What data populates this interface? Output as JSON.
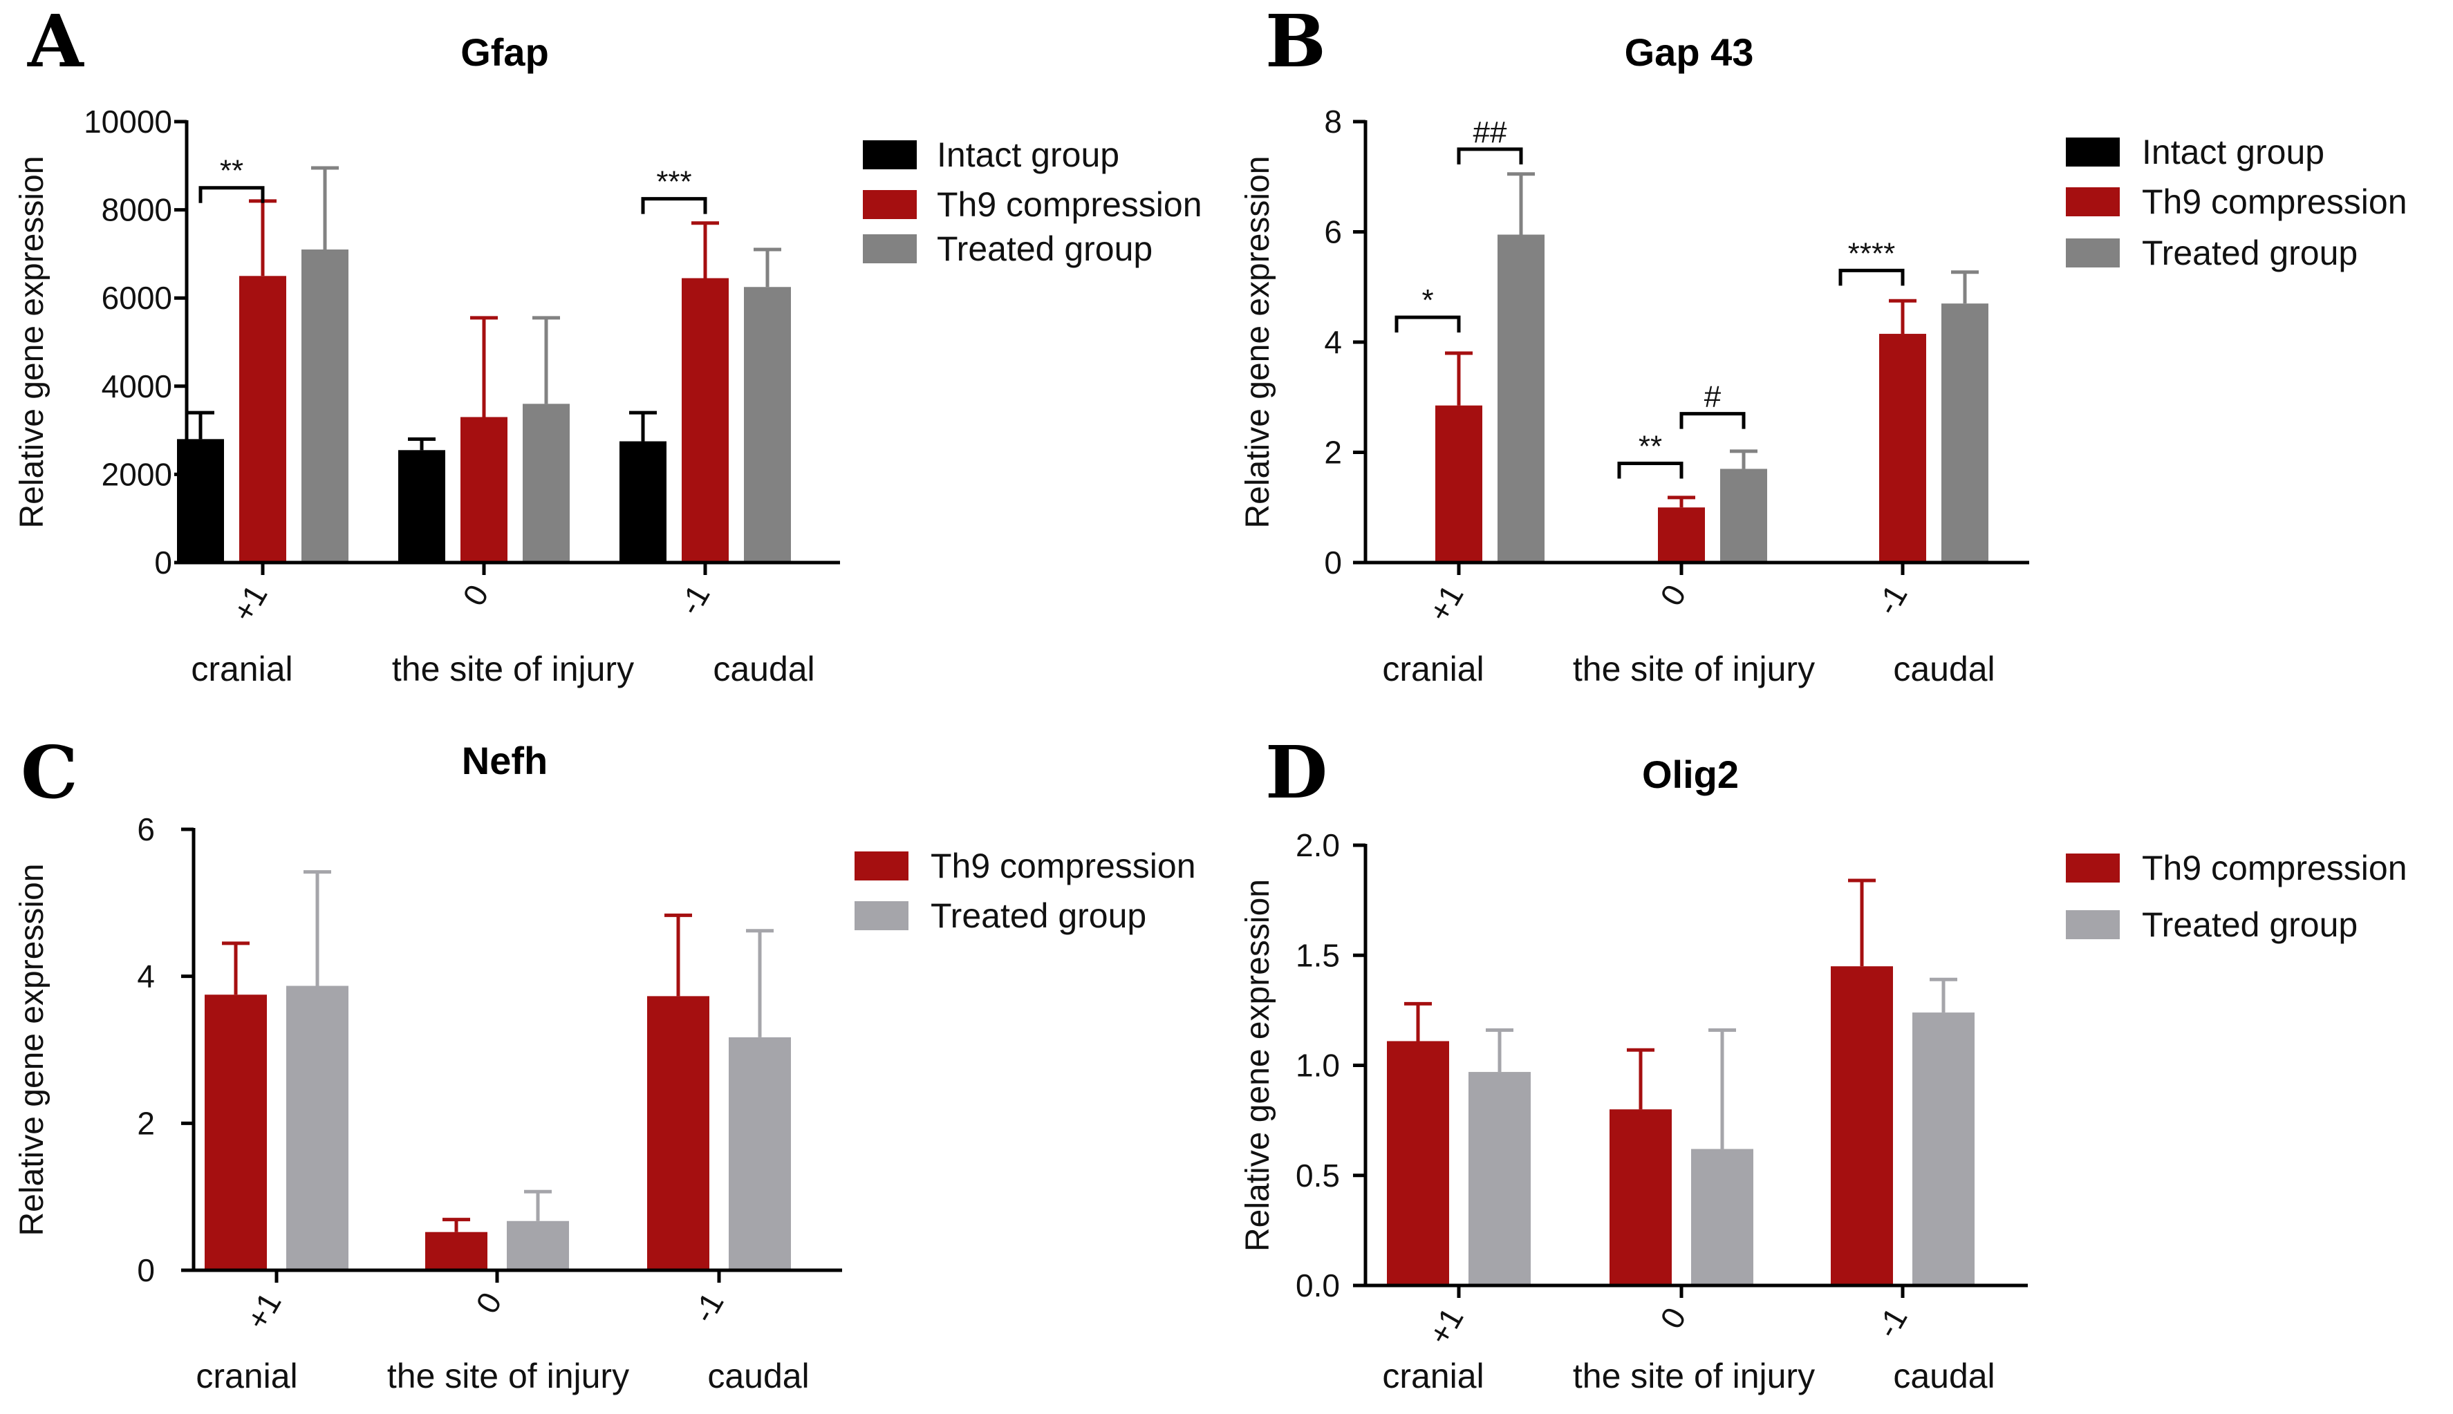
{
  "colors": {
    "intact": "#000000",
    "th9": "#A50F10",
    "treated_dark": "#828282",
    "treated_light": "#A5A5AA",
    "axis": "#000000"
  },
  "chart_data": [
    {
      "panel": "A",
      "type": "bar",
      "title": "Gfap",
      "ylabel": "Relative gene expression",
      "ylim": [
        0,
        10000
      ],
      "yticks": [
        0,
        2000,
        4000,
        6000,
        8000,
        10000
      ],
      "yticklabels": [
        "0",
        "2000",
        "4000",
        "6000",
        "8000",
        "10000"
      ],
      "categories": [
        "+1",
        "0",
        "-1"
      ],
      "category_groups": [
        "cranial",
        "the site of injury",
        "caudal"
      ],
      "legend_position": "right",
      "series": [
        {
          "name": "Intact group",
          "color_key": "intact",
          "values": [
            2800,
            2550,
            2750
          ],
          "errors": [
            600,
            250,
            650
          ]
        },
        {
          "name": "Th9 compression",
          "color_key": "th9",
          "values": [
            6500,
            3300,
            6450
          ],
          "errors": [
            1700,
            2250,
            1250
          ]
        },
        {
          "name": "Treated group",
          "color_key": "treated_dark",
          "values": [
            7100,
            3600,
            6250
          ],
          "errors": [
            1850,
            1950,
            850
          ]
        }
      ],
      "annotations": [
        {
          "label": "**",
          "category": 0,
          "from_series": 0,
          "to_series": 1,
          "y": 8500
        },
        {
          "label": "***",
          "category": 2,
          "from_series": 0,
          "to_series": 1,
          "y": 8250
        }
      ]
    },
    {
      "panel": "B",
      "type": "bar",
      "title": "Gap 43",
      "ylabel": "Relative gene expression",
      "ylim": [
        0,
        8
      ],
      "yticks": [
        0,
        2,
        4,
        6,
        8
      ],
      "yticklabels": [
        "0",
        "2",
        "4",
        "6",
        "8"
      ],
      "categories": [
        "+1",
        "0",
        "-1"
      ],
      "category_groups": [
        "cranial",
        "the site of injury",
        "caudal"
      ],
      "legend_position": "right",
      "series": [
        {
          "name": "Intact group",
          "color_key": "intact",
          "values": [
            0,
            0,
            0
          ],
          "errors": [
            0,
            0,
            0
          ]
        },
        {
          "name": "Th9 compression",
          "color_key": "th9",
          "values": [
            2.85,
            1.0,
            4.15
          ],
          "errors": [
            0.95,
            0.18,
            0.6
          ]
        },
        {
          "name": "Treated group",
          "color_key": "treated_dark",
          "values": [
            5.95,
            1.7,
            4.7
          ],
          "errors": [
            1.1,
            0.32,
            0.57
          ]
        }
      ],
      "annotations": [
        {
          "label": "*",
          "category": 0,
          "from_series": 0,
          "to_series": 1,
          "y": 4.45
        },
        {
          "label": "##",
          "category": 0,
          "from_series": 1,
          "to_series": 2,
          "y": 7.5
        },
        {
          "label": "**",
          "category": 1,
          "from_series": 0,
          "to_series": 1,
          "y": 1.8
        },
        {
          "label": "#",
          "category": 1,
          "from_series": 1,
          "to_series": 2,
          "y": 2.7
        },
        {
          "label": "****",
          "category": 2,
          "from_series": 0,
          "to_series": 1,
          "y": 5.3
        }
      ]
    },
    {
      "panel": "C",
      "type": "bar",
      "title": "Nefh",
      "ylabel": "Relative gene expression",
      "ylim": [
        0,
        6
      ],
      "yticks": [
        0,
        2,
        4,
        6
      ],
      "yticklabels": [
        "0",
        "2",
        "4",
        "6"
      ],
      "categories": [
        "+1",
        "0",
        "-1"
      ],
      "category_groups": [
        "cranial",
        "the site of injury",
        "caudal"
      ],
      "legend_position": "right",
      "series": [
        {
          "name": "Th9 compression",
          "color_key": "th9",
          "values": [
            3.75,
            0.52,
            3.73
          ],
          "errors": [
            0.7,
            0.17,
            1.1
          ]
        },
        {
          "name": "Treated group",
          "color_key": "treated_light",
          "values": [
            3.87,
            0.67,
            3.17
          ],
          "errors": [
            1.55,
            0.4,
            1.45
          ]
        }
      ],
      "annotations": []
    },
    {
      "panel": "D",
      "type": "bar",
      "title": "Olig2",
      "ylabel": "Relative gene expression",
      "ylim": [
        0,
        2.0
      ],
      "yticks": [
        0,
        0.5,
        1.0,
        1.5,
        2.0
      ],
      "yticklabels": [
        "0.0",
        "0.5",
        "1.0",
        "1.5",
        "2.0"
      ],
      "categories": [
        "+1",
        "0",
        "-1"
      ],
      "category_groups": [
        "cranial",
        "the site of injury",
        "caudal"
      ],
      "legend_position": "right",
      "series": [
        {
          "name": "Th9 compression",
          "color_key": "th9",
          "values": [
            1.11,
            0.8,
            1.45
          ],
          "errors": [
            0.17,
            0.27,
            0.39
          ]
        },
        {
          "name": "Treated group",
          "color_key": "treated_light",
          "values": [
            0.97,
            0.62,
            1.24
          ],
          "errors": [
            0.19,
            0.54,
            0.15
          ]
        }
      ],
      "annotations": []
    }
  ]
}
